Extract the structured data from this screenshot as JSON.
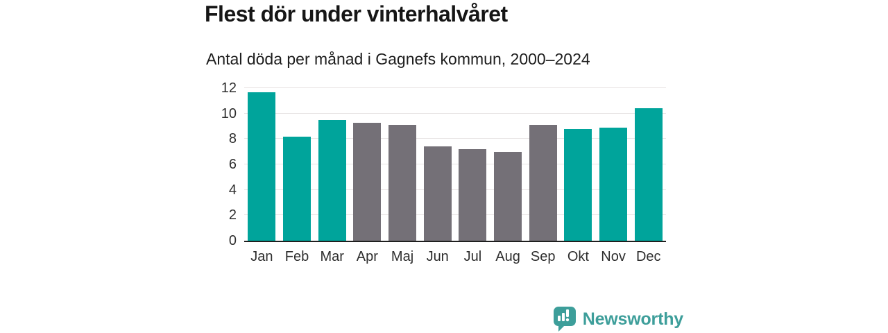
{
  "header": {
    "title": "Flest dör under vinterhalvåret",
    "subtitle": "Antal döda per månad i Gagnefs kommun, 2000–2024"
  },
  "chart_data": {
    "type": "bar",
    "title": "Flest dör under vinterhalvåret",
    "subtitle": "Antal döda per månad i Gagnefs kommun, 2000–2024",
    "categories": [
      "Jan",
      "Feb",
      "Mar",
      "Apr",
      "Maj",
      "Jun",
      "Jul",
      "Aug",
      "Sep",
      "Okt",
      "Nov",
      "Dec"
    ],
    "values": [
      11.7,
      8.2,
      9.5,
      9.3,
      9.1,
      7.4,
      7.2,
      7.0,
      9.1,
      8.8,
      8.9,
      10.4
    ],
    "color_key": [
      "winter",
      "winter",
      "winter",
      "summer",
      "summer",
      "summer",
      "summer",
      "summer",
      "summer",
      "winter",
      "winter",
      "winter"
    ],
    "colors": {
      "winter": "#00a49b",
      "summer": "#747077"
    },
    "xlabel": "",
    "ylabel": "",
    "ylim": [
      0,
      12
    ],
    "yticks": [
      0,
      2,
      4,
      6,
      8,
      10,
      12
    ],
    "grid": true,
    "legend": false,
    "gridline_color": "#e8e4e4",
    "axis_line_color": "#1f1f1f"
  },
  "footer": {
    "brand": "Newsworthy",
    "brand_color": "#3d9e9a",
    "logo_icon": "newsworthy-logo-icon"
  }
}
